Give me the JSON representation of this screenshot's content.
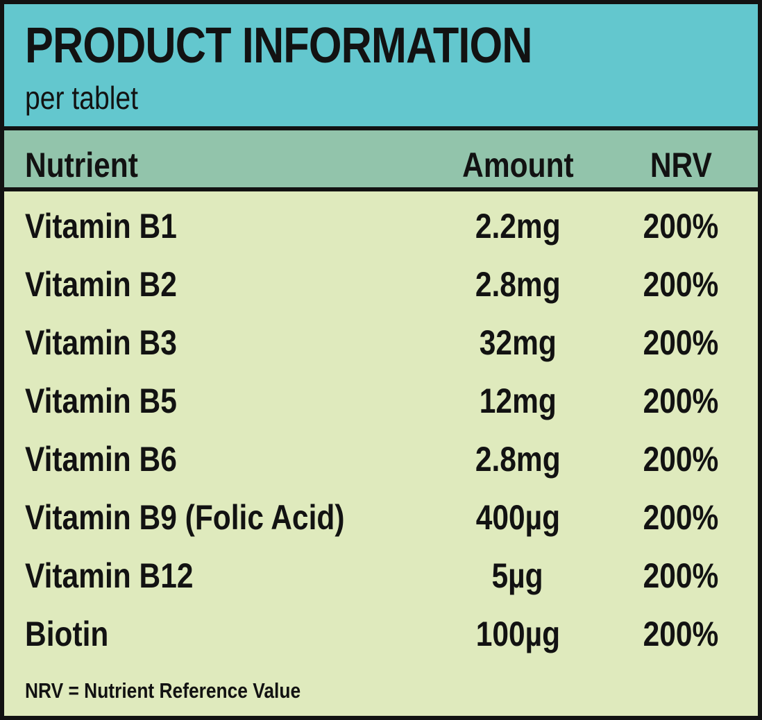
{
  "header": {
    "title": "PRODUCT INFORMATION",
    "subtitle": "per tablet"
  },
  "table": {
    "columns": {
      "nutrient": "Nutrient",
      "amount": "Amount",
      "nrv": "NRV"
    },
    "rows": [
      {
        "nutrient": "Vitamin B1",
        "amount": "2.2mg",
        "nrv": "200%"
      },
      {
        "nutrient": "Vitamin B2",
        "amount": "2.8mg",
        "nrv": "200%"
      },
      {
        "nutrient": "Vitamin B3",
        "amount": "32mg",
        "nrv": "200%"
      },
      {
        "nutrient": "Vitamin B5",
        "amount": "12mg",
        "nrv": "200%"
      },
      {
        "nutrient": "Vitamin B6",
        "amount": "2.8mg",
        "nrv": "200%"
      },
      {
        "nutrient": "Vitamin B9 (Folic Acid)",
        "amount": "400µg",
        "nrv": "200%"
      },
      {
        "nutrient": "Vitamin B12",
        "amount": "5µg",
        "nrv": "200%"
      },
      {
        "nutrient": "Biotin",
        "amount": "100µg",
        "nrv": "200%"
      }
    ],
    "footnote": "NRV = Nutrient Reference Value"
  },
  "colors": {
    "header_bg": "#63c7ce",
    "column_header_bg": "#92c4ab",
    "body_bg": "#dfeabd",
    "border": "#121212",
    "text": "#121212"
  }
}
